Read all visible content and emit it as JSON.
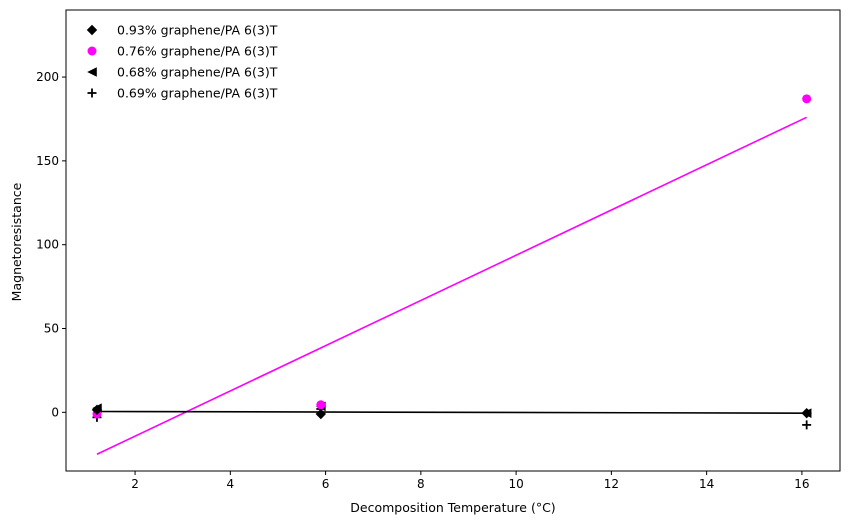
{
  "chart_data": {
    "type": "scatter",
    "xlabel": "Decomposition Temperature (°C)",
    "ylabel": "Magnetoresistance",
    "xlim": [
      0.55,
      16.8
    ],
    "ylim": [
      -35,
      240
    ],
    "xticks": [
      2,
      4,
      6,
      8,
      10,
      12,
      14,
      16
    ],
    "yticks": [
      0,
      50,
      100,
      150,
      200
    ],
    "grid": false,
    "legend_position": "top-left",
    "series": [
      {
        "name": "0.93% graphene/PA 6(3)T",
        "marker": "diamond",
        "color": "#000000",
        "x": [
          1.2,
          5.9,
          16.1
        ],
        "y": [
          1.5,
          -1.0,
          -0.5
        ]
      },
      {
        "name": "0.76% graphene/PA 6(3)T",
        "marker": "circle",
        "color": "#ff00ff",
        "x": [
          1.2,
          5.9,
          16.1
        ],
        "y": [
          -1.0,
          4.5,
          187.0
        ]
      },
      {
        "name": "0.68% graphene/PA 6(3)T",
        "marker": "triangle-left",
        "color": "#000000",
        "x": [
          1.2,
          5.9,
          16.1
        ],
        "y": [
          2.5,
          3.5,
          -0.5
        ]
      },
      {
        "name": "0.69% graphene/PA 6(3)T",
        "marker": "plus",
        "color": "#000000",
        "x": [
          1.2,
          5.9,
          16.1
        ],
        "y": [
          -3.0,
          2.0,
          -7.5
        ]
      }
    ],
    "fit_lines": [
      {
        "color": "#ff00ff",
        "x": [
          1.2,
          16.1
        ],
        "y": [
          -25.0,
          176.0
        ]
      },
      {
        "color": "#000000",
        "x": [
          1.2,
          16.1
        ],
        "y": [
          0.5,
          -0.5
        ]
      }
    ]
  }
}
